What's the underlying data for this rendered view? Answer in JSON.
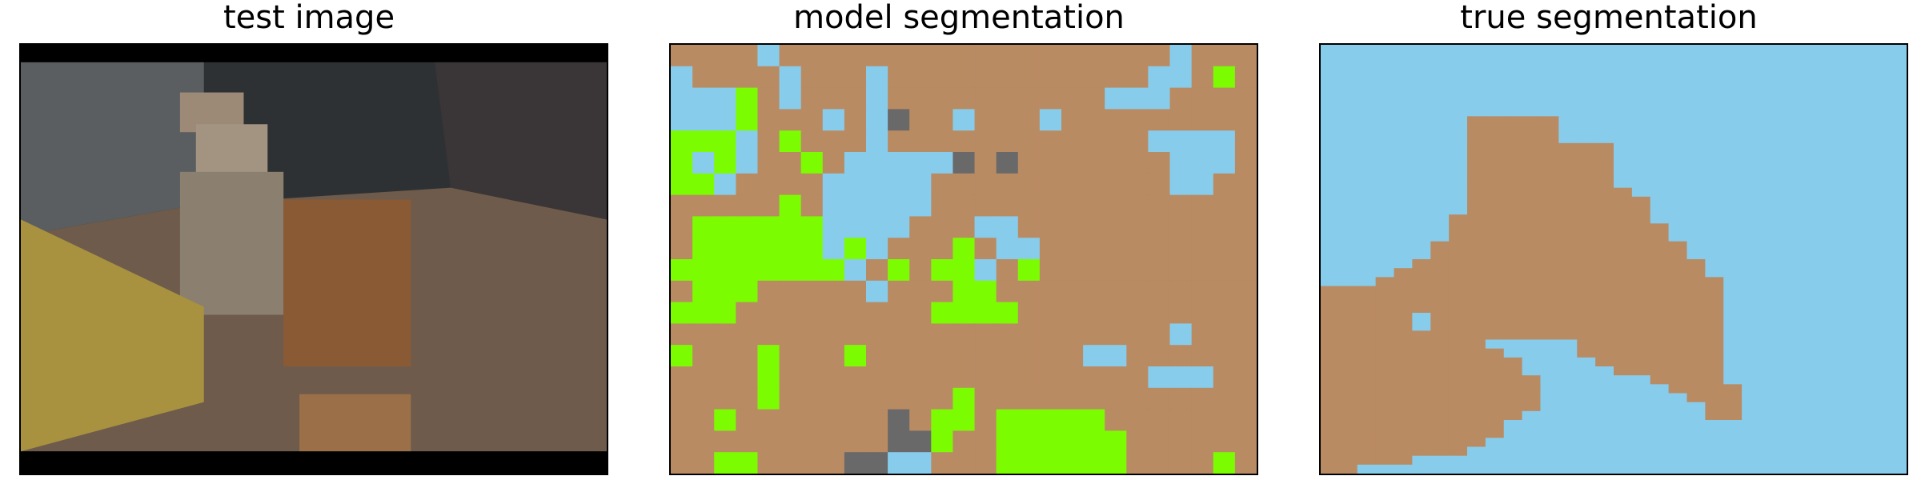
{
  "titles": {
    "test": "test image",
    "model": "model segmentation",
    "truth": "true segmentation"
  },
  "palette": {
    "background": "#000000",
    "blue": "#88ccec",
    "brown": "#b98b63",
    "green": "#7cfc00",
    "gray": "#696969",
    "scene_wall": "#3a3d40",
    "scene_floor": "#6b5a4a",
    "scene_box": "#7a5a3e",
    "scene_ramp": "#a48a3c"
  },
  "model_grid": [
    "BBBBLBBBBBBBBBBBBBBBBBBLBBB",
    "LBBBBLBBBLBBBBBBBBBBBBLLBGB",
    "LLLGBLBBBLBBBBBBBBBBLLLBBBB",
    "LLLGBBBLBLDBBLBBBLBBBBBBBBB",
    "GGGLBGBBBLBBBBBBBBBBBBLLLLB",
    "GLGLBBGBLLLLLDBDBBBBBBBLLLB",
    "GGLBBBBLLLLLBBBBBBBBBBBLLBB",
    "BBBBBGBLLLLLBBBBBBBBBBBBBBB",
    "BGGGGGGLLLLBBBLLBBBBBBBBBBB",
    "BGGGGGGLGLBBBGBLLBBBBBBBBBB",
    "GGGGGGGGLBGBGGLBGBBBBBBBBBB",
    "BGGGBBBBBLBBBGGBBBBBBBBBBBB",
    "GGGBBBBBBBBBGGGGBBBBBBBBBBB",
    "BBBBBBBBBBBBBBBBBBBBBBBLBBB",
    "GBBBGBBBGBBBBBBBBBBLLBBBBBB",
    "BBBBGBBBBBBBBBBBBBBBBBLLLBB",
    "BBBBGBBBBBBBBGBBBBBBBBBBBBB",
    "BBGBBBBBBBDBGGBGGGGGBBBBBBB",
    "BBBBBBBBBBDDGBBGGGGGGBBBBBB",
    "BBGGBBBBDDLLBBBGGGGGGBBBBGB"
  ],
  "truth_grid": [
    "LLLLLLLLLLLLLLLLLLLLLLLLLLLLLLLL",
    "LLLLLLLLLLLLLLLLLLLLLLLLLLLLLLLL",
    "LLLLLLLLLLLLLLLLLLLLLLLLLLLLLLLL",
    "LLLLLLLLLLLLLLLLLLLLLLLLLLLLLLLL",
    "LLLLLLLLLLLLLLLLLLLLLLLLLLLLLLLL",
    "LLLLLLLLLLLLLLLLLLLLLLLLLLLLLLLL",
    "LLLLLLLLLLLLLLLLLLLLLLLLLLLLLLLL",
    "LLLLLLLLLLLLLLLLLLLLLLLLLLLLLLLL",
    "LLLLLLLLBBBBBLLLLLLLLLLLLLLLLLLL",
    "LLLLLLLLBBBBBLLLLLLLLLLLLLLLLLLL",
    "LLLLLLLLBBBBBLLLLLLLLLLLLLLLLLLL",
    "LLLLLLLLBBBBBBBBLLLLLLLLLLLLLLLL",
    "LLLLLLLLBBBBBBBBLLLLLLLLLLLLLLLL",
    "LLLLLLLLBBBBBBBBLLLLLLLLLLLLLLLL",
    "LLLLLLLLBBBBBBBBLLLLLLLLLLLLLLLL",
    "LLLLLLLLBBBBBBBBLLLLLLLLLLLLLLLL",
    "LLLLLLLLBBBBBBBBBLLLLLLLLLLLLLLL",
    "LLLLLLLLBBBBBBBBBBLLLLLLLLLLLLLL",
    "LLLLLLLLBBBBBBBBBBLLLLLLLLLLLLLL",
    "LLLLLLLBBBBBBBBBBBLLLLLLLLLLLLLL",
    "LLLLLLLBBBBBBBBBBBBLLLLLLLLLLLLL",
    "LLLLLLLBBBBBBBBBBBBLLLLLLLLLLLLL",
    "LLLLLLBBBBBBBBBBBBBBLLLLLLLLLLLL",
    "LLLLLLBBBBBBBBBBBBBBLLLLLLLLLLLL",
    "LLLLLBBBBBBBBBBBBBBBBLLLLLLLLLLL",
    "LLLLBBBBBBBBBBBBBBBBBLLLLLLLLLLL",
    "LLLBBBBBBBBBBBBBBBBBBBLLLLLLLLLL",
    "BBBBBBBBBBBBBBBBBBBBBBLLLLLLLLLL",
    "BBBBBBBBBBBBBBBBBBBBBBLLLLLLLLLL",
    "BBBBBBBBBBBBBBBBBBBBBBLLLLLLLLLL",
    "BBBBBLBBBBBBBBBBBBBBBBLLLLLLLLLL",
    "BBBBBLBBBBBBBBBBBBBBBBLLLLLLLLLL",
    "BBBBBBBBBBBBBBBBBBBBBBLLLLLLLLLL",
    "BBBBBBBBBLLLLLBBBBBBBBLLLLLLLLLL",
    "BBBBBBBBBBLLLLBBBBBBBBLLLLLLLLLL",
    "BBBBBBBBBBBLLLLBBBBBBBLLLLLLLLLL",
    "BBBBBBBBBBBLLLLLBBBBBBLLLLLLLLLL",
    "BBBBBBBBBBBBLLLLLLBBBBLLLLLLLLLL",
    "BBBBBBBBBBBBLLLLLLLBBBBLLLLLLLLL",
    "BBBBBBBBBBBBLLLLLLLLBBBLLLLLLLLL",
    "BBBBBBBBBBBBLLLLLLLLLBBLLLLLLLLL",
    "BBBBBBBBBBBLLLLLLLLLLBBLLLLLLLLL",
    "BBBBBBBBBBLLLLLLLLLLLLLLLLLLLLLL",
    "BBBBBBBBBBLLLLLLLLLLLLLLLLLLLLLL",
    "BBBBBBBBBLLLLLLLLLLLLLLLLLLLLLLL",
    "BBBBBBBBLLLLLLLLLLLLLLLLLLLLLLLL",
    "BBBBBLLLLLLLLLLLLLLLLLLLLLLLLLLL",
    "BBLLLLLLLLLLLLLLLLLLLLLLLLLLLLLL"
  ]
}
